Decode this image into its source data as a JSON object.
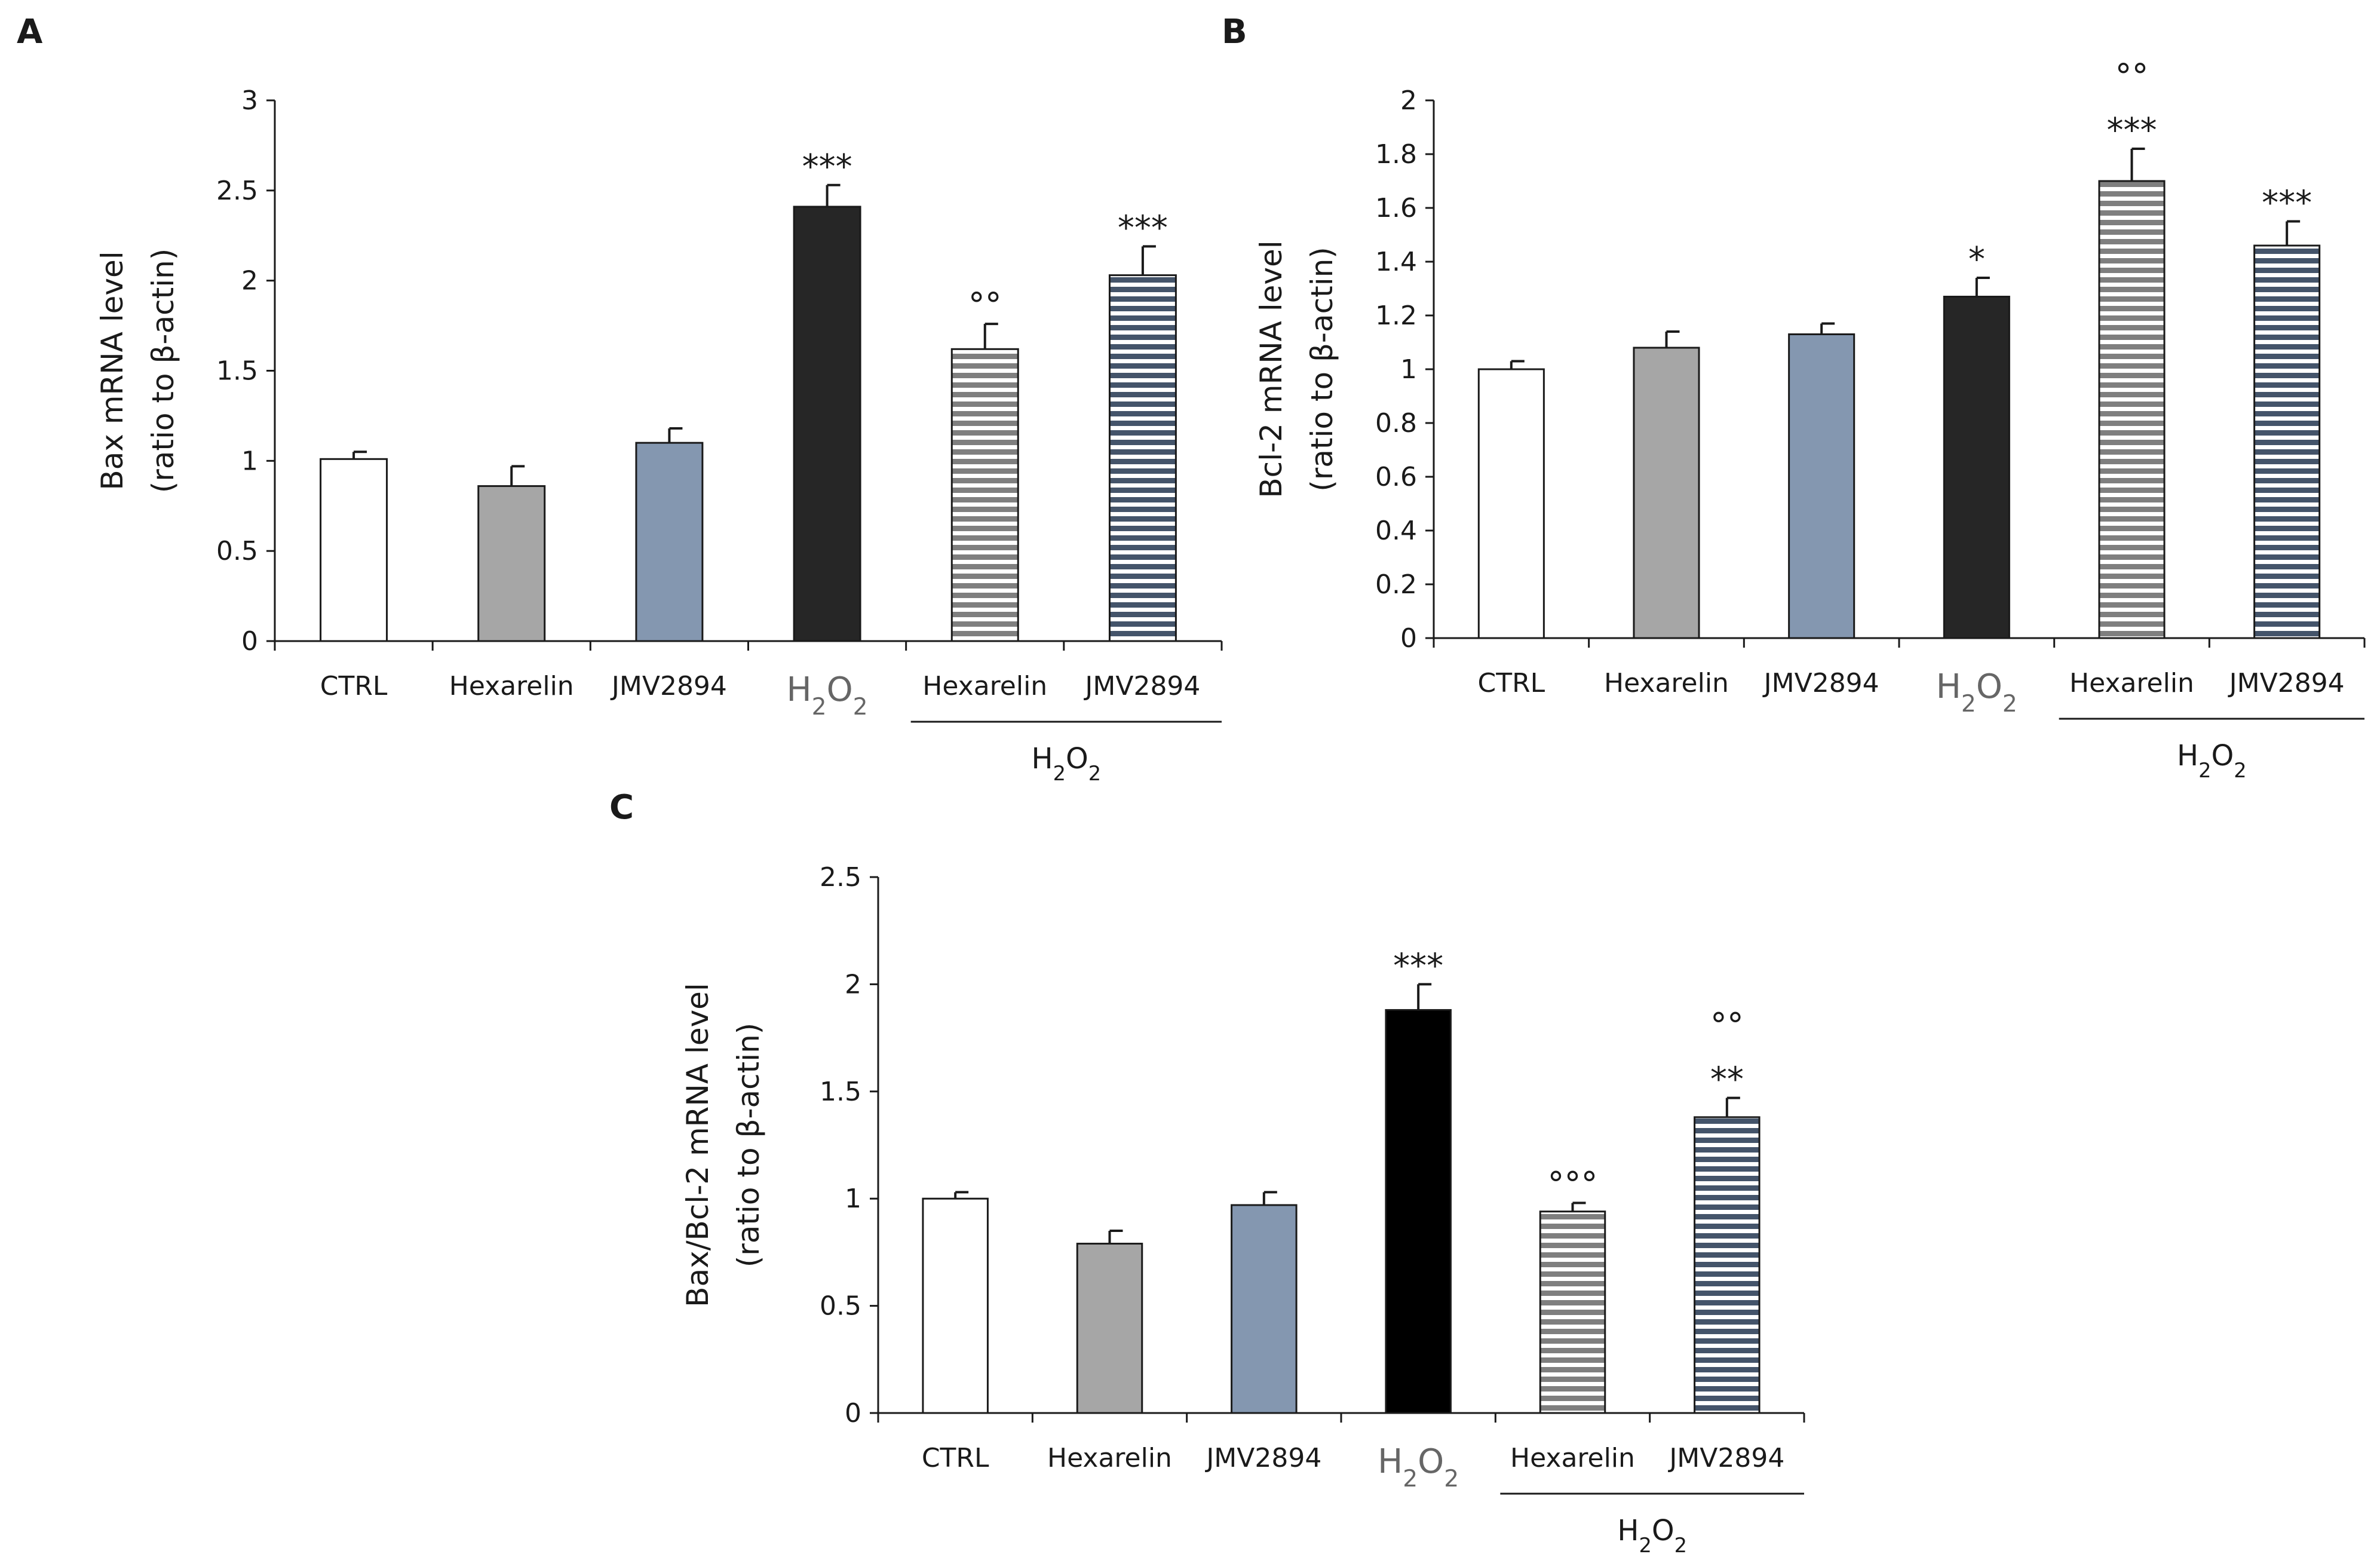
{
  "colors": {
    "CTRL": "#ffffff",
    "Hexarelin": "#a6a6a6",
    "JMV2894": "#8497b0",
    "H2O2": "#262626",
    "H2O2_C": "#000000",
    "axis": "#1a1a1a",
    "stripe_gray_bg": "#7f7f7f",
    "stripe_blue_bg": "#44546a"
  },
  "chart_data": [
    {
      "type": "bar",
      "panel": "A",
      "ylabel_line1": "Bax mRNA level",
      "ylabel_line2": "(ratio to β-actin)",
      "ylim": [
        0,
        3
      ],
      "yticks": [
        "0",
        "0.5",
        "1",
        "1.5",
        "2",
        "2.5",
        "3"
      ],
      "ytick_values": [
        0,
        0.5,
        1,
        1.5,
        2,
        2.5,
        3
      ],
      "categories": [
        "CTRL",
        "Hexarelin",
        "JMV2894",
        "H2O2",
        "Hexarelin",
        "JMV2894"
      ],
      "values": [
        1.01,
        0.86,
        1.1,
        2.41,
        1.62,
        2.03
      ],
      "errors": [
        0.04,
        0.11,
        0.08,
        0.12,
        0.14,
        0.16
      ],
      "fills": [
        "CTRL",
        "Hexarelin",
        "JMV2894",
        "H2O2",
        "stripe-gray",
        "stripe-blue"
      ],
      "sig_stars": [
        "",
        "",
        "",
        "***",
        "",
        "***"
      ],
      "sig_circles": [
        "",
        "",
        "",
        "",
        "°°",
        ""
      ],
      "group_label": "H2O2",
      "h2o2_index": 3
    },
    {
      "type": "bar",
      "panel": "B",
      "ylabel_line1": "Bcl-2 mRNA level",
      "ylabel_line2": "(ratio to β-actin)",
      "ylim": [
        0,
        2
      ],
      "yticks": [
        "0",
        "0.2",
        "0.4",
        "0.6",
        "0.8",
        "1",
        "1.2",
        "1.4",
        "1.6",
        "1.8",
        "2"
      ],
      "ytick_values": [
        0,
        0.2,
        0.4,
        0.6,
        0.8,
        1,
        1.2,
        1.4,
        1.6,
        1.8,
        2
      ],
      "categories": [
        "CTRL",
        "Hexarelin",
        "JMV2894",
        "H2O2",
        "Hexarelin",
        "JMV2894"
      ],
      "values": [
        1.0,
        1.08,
        1.13,
        1.27,
        1.7,
        1.46
      ],
      "errors": [
        0.03,
        0.06,
        0.04,
        0.07,
        0.12,
        0.09
      ],
      "fills": [
        "CTRL",
        "Hexarelin",
        "JMV2894",
        "H2O2",
        "stripe-gray",
        "stripe-blue"
      ],
      "sig_stars": [
        "",
        "",
        "",
        "*",
        "***",
        "***"
      ],
      "sig_circles": [
        "",
        "",
        "",
        "",
        "°°",
        ""
      ],
      "group_label": "H2O2",
      "h2o2_index": 3
    },
    {
      "type": "bar",
      "panel": "C",
      "ylabel_line1": "Bax/Bcl-2 mRNA level",
      "ylabel_line2": "(ratio to β-actin)",
      "ylim": [
        0,
        2.5
      ],
      "yticks": [
        "0",
        "0.5",
        "1",
        "1.5",
        "2",
        "2.5"
      ],
      "ytick_values": [
        0,
        0.5,
        1,
        1.5,
        2,
        2.5
      ],
      "categories": [
        "CTRL",
        "Hexarelin",
        "JMV2894",
        "H2O2",
        "Hexarelin",
        "JMV2894"
      ],
      "values": [
        1.0,
        0.79,
        0.97,
        1.88,
        0.94,
        1.38
      ],
      "errors": [
        0.03,
        0.06,
        0.06,
        0.12,
        0.04,
        0.09
      ],
      "fills": [
        "CTRL",
        "Hexarelin",
        "JMV2894",
        "H2O2_C",
        "stripe-gray",
        "stripe-blue"
      ],
      "sig_stars": [
        "",
        "",
        "",
        "***",
        "",
        "**"
      ],
      "sig_circles": [
        "",
        "",
        "",
        "",
        "°°°",
        "°°"
      ],
      "group_label": "H2O2",
      "h2o2_index": 3
    }
  ]
}
